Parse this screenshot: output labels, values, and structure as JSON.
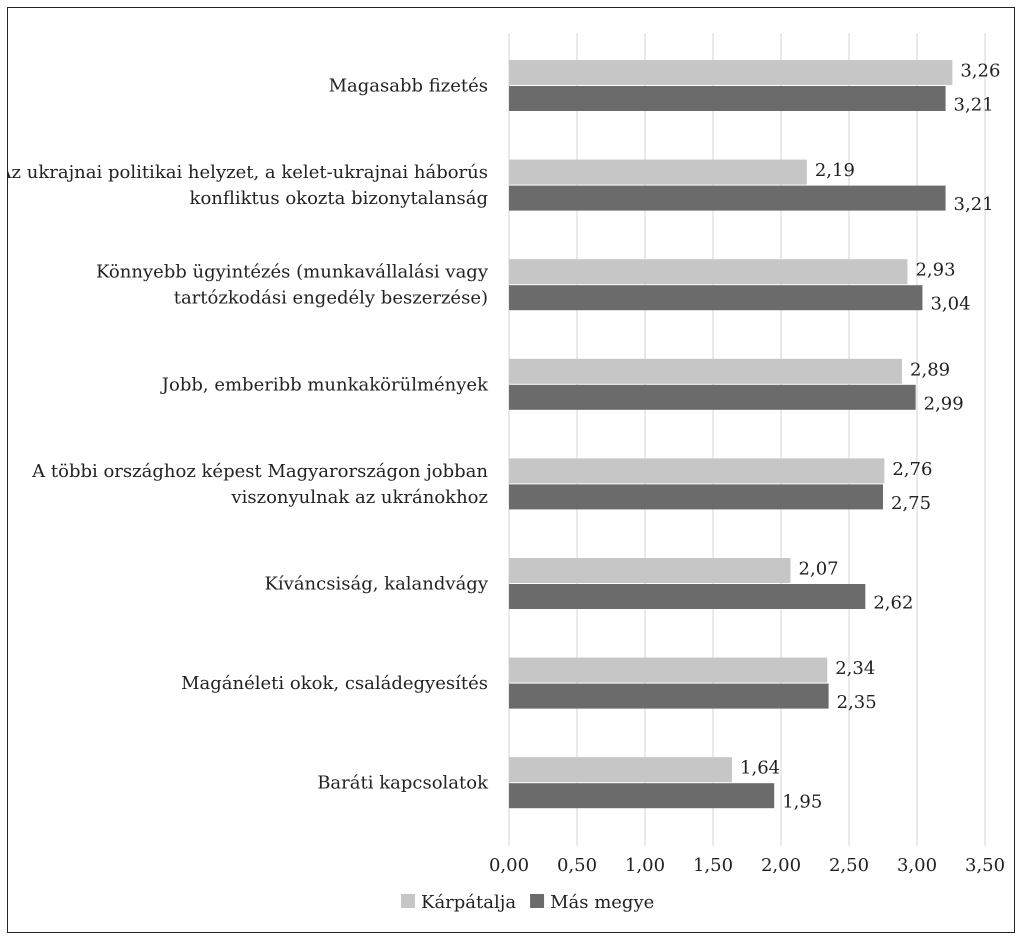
{
  "chart_data": {
    "type": "bar",
    "orientation": "horizontal",
    "categories": [
      [
        "Magasabb fizetés"
      ],
      [
        "Az ukrajnai politikai helyzet, a kelet-ukrajnai háborús",
        "konfliktus okozta bizonytalanság"
      ],
      [
        "Könnyebb ügyintézés (munkavállalási vagy",
        "tartózkodási engedély beszerzése)"
      ],
      [
        "Jobb, emberibb munkakörülmények"
      ],
      [
        "A többi országhoz képest Magyarországon jobban",
        "viszonyulnak az ukránokhoz"
      ],
      [
        "Kíváncsiság, kalandvágy"
      ],
      [
        "Magánéleti okok, családegyesítés"
      ],
      [
        "Baráti kapcsolatok"
      ]
    ],
    "series": [
      {
        "name": "Kárpátalja",
        "color": "#c6c6c6",
        "values": [
          3.26,
          2.19,
          2.93,
          2.89,
          2.76,
          2.07,
          2.34,
          1.64
        ],
        "labels": [
          "3,26",
          "2,19",
          "2,93",
          "2,89",
          "2,76",
          "2,07",
          "2,34",
          "1,64"
        ]
      },
      {
        "name": "Más megye",
        "color": "#6b6b6b",
        "values": [
          3.21,
          3.21,
          3.04,
          2.99,
          2.75,
          2.62,
          2.35,
          1.95
        ],
        "labels": [
          "3,21",
          "3,21",
          "3,04",
          "2,99",
          "2,75",
          "2,62",
          "2,35",
          "1,95"
        ]
      }
    ],
    "xlim": [
      0,
      3.5
    ],
    "xticks": [
      0,
      0.5,
      1,
      1.5,
      2,
      2.5,
      3,
      3.5
    ],
    "xtick_labels": [
      "0,00",
      "0,50",
      "1,00",
      "1,50",
      "2,00",
      "2,50",
      "3,00",
      "3,50"
    ],
    "grid": true,
    "legend_position": "bottom-center"
  }
}
